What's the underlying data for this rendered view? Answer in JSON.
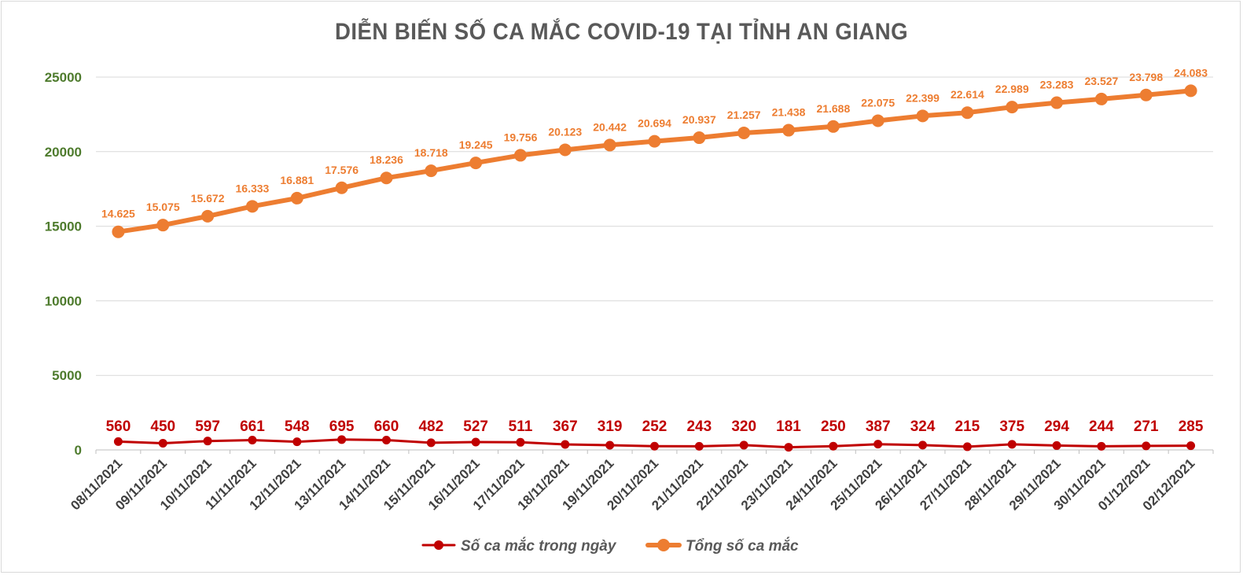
{
  "chart_data": {
    "type": "line",
    "title": "DIỄN BIẾN SỐ CA MẮC COVID-19 TẠI TỈNH AN GIANG",
    "categories": [
      "08/11/2021",
      "09/11/2021",
      "10/11/2021",
      "11/11/2021",
      "12/11/2021",
      "13/11/2021",
      "14/11/2021",
      "15/11/2021",
      "16/11/2021",
      "17/11/2021",
      "18/11/2021",
      "19/11/2021",
      "20/11/2021",
      "21/11/2021",
      "22/11/2021",
      "23/11/2021",
      "24/11/2021",
      "25/11/2021",
      "26/11/2021",
      "27/11/2021",
      "28/11/2021",
      "29/11/2021",
      "30/11/2021",
      "01/12/2021",
      "02/12/2021"
    ],
    "ylim": [
      0,
      25000
    ],
    "yticks": [
      "0",
      "5000",
      "10000",
      "15000",
      "20000",
      "25000"
    ],
    "grid": true,
    "legend_position": "bottom",
    "series": [
      {
        "name": "Số ca mắc trong ngày",
        "color": "#c00000",
        "values": [
          560,
          450,
          597,
          661,
          548,
          695,
          660,
          482,
          527,
          511,
          367,
          319,
          252,
          243,
          320,
          181,
          250,
          387,
          324,
          215,
          375,
          294,
          244,
          271,
          285
        ],
        "labels": [
          "560",
          "450",
          "597",
          "661",
          "548",
          "695",
          "660",
          "482",
          "527",
          "511",
          "367",
          "319",
          "252",
          "243",
          "320",
          "181",
          "250",
          "387",
          "324",
          "215",
          "375",
          "294",
          "244",
          "271",
          "285"
        ]
      },
      {
        "name": "Tổng số ca mắc",
        "color": "#ed7d31",
        "values": [
          14625,
          15075,
          15672,
          16333,
          16881,
          17576,
          18236,
          18718,
          19245,
          19756,
          20123,
          20442,
          20694,
          20937,
          21257,
          21438,
          21688,
          22075,
          22399,
          22614,
          22989,
          23283,
          23527,
          23798,
          24083
        ],
        "labels": [
          "14.625",
          "15.075",
          "15.672",
          "16.333",
          "16.881",
          "17.576",
          "18.236",
          "18.718",
          "19.245",
          "19.756",
          "20.123",
          "20.442",
          "20.694",
          "20.937",
          "21.257",
          "21.438",
          "21.688",
          "22.075",
          "22.399",
          "22.614",
          "22.989",
          "23.283",
          "23.527",
          "23.798",
          "24.083"
        ]
      }
    ]
  }
}
